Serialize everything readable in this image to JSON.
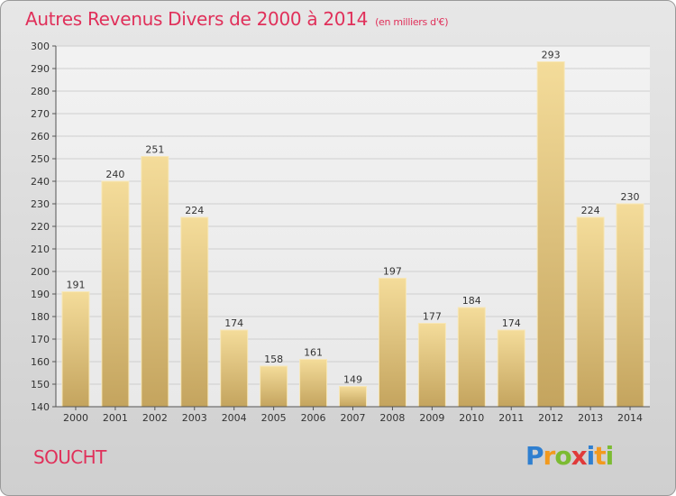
{
  "header": {
    "title": "Autres Revenus Divers de 2000 à 2014",
    "subtitle": "(en milliers d'€)"
  },
  "footer": {
    "place": "SOUCHT",
    "logo": "Proxiti"
  },
  "colors": {
    "title": "#e0305a",
    "bar_top": "#f4dc9a",
    "bar_bottom": "#c4a45e",
    "logo_p": "#2f7fd0",
    "logo_r": "#f29a1e",
    "logo_o": "#7cbb32",
    "logo_x": "#e03a3a",
    "logo_i": "#2f7fd0",
    "logo_t": "#f29a1e",
    "logo_i2": "#7cbb32"
  },
  "chart_data": {
    "type": "bar",
    "title": "Autres Revenus Divers de 2000 à 2014",
    "subtitle": "(en milliers d'€)",
    "categories": [
      "2000",
      "2001",
      "2002",
      "2003",
      "2004",
      "2005",
      "2006",
      "2007",
      "2008",
      "2009",
      "2010",
      "2011",
      "2012",
      "2013",
      "2014"
    ],
    "values": [
      191,
      240,
      251,
      224,
      174,
      158,
      161,
      149,
      197,
      177,
      184,
      174,
      293,
      224,
      230
    ],
    "ylim": [
      140,
      300
    ],
    "yticks": [
      140,
      150,
      160,
      170,
      180,
      190,
      200,
      210,
      220,
      230,
      240,
      250,
      260,
      270,
      280,
      290,
      300
    ],
    "grid": true,
    "legend": "none"
  }
}
